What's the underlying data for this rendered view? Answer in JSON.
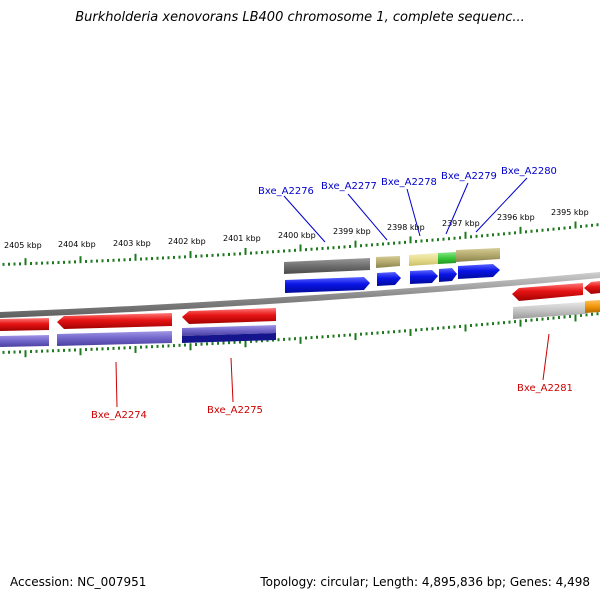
{
  "title": "Burkholderia xenovorans LB400 chromosome 1, complete sequenc...",
  "footer": {
    "accession": "Accession: NC_007951",
    "summary": "Topology: circular; Length: 4,895,836 bp; Genes: 4,498"
  },
  "colors": {
    "background": "#ffffff",
    "backbone": "#8c8c8c",
    "tick": "#1e7a1e",
    "label_upper": "#0000cc",
    "label_lower": "#cc0000",
    "gene_forward": "#0a14e6",
    "gene_reverse": "#e61414",
    "feature_gray": "#6e6e6e",
    "feature_olive": "#b4aa6e",
    "feature_khaki": "#e6dc8c",
    "feature_green": "#3cc83c",
    "feature_purple": "#7064c8",
    "feature_navy": "#14148c",
    "feature_lightgray": "#bebebe",
    "feature_orange": "#f0960a"
  },
  "scale_labels": [
    "2405 kbp",
    "2404 kbp",
    "2403 kbp",
    "2402 kbp",
    "2401 kbp",
    "2400 kbp",
    "2399 kbp",
    "2398 kbp",
    "2397 kbp",
    "2396 kbp",
    "2395 kbp"
  ],
  "gene_labels_upper": [
    "Bxe_A2276",
    "Bxe_A2277",
    "Bxe_A2278",
    "Bxe_A2279",
    "Bxe_A2280"
  ],
  "gene_labels_lower": [
    "Bxe_A2274",
    "Bxe_A2275",
    "Bxe_A2281"
  ]
}
